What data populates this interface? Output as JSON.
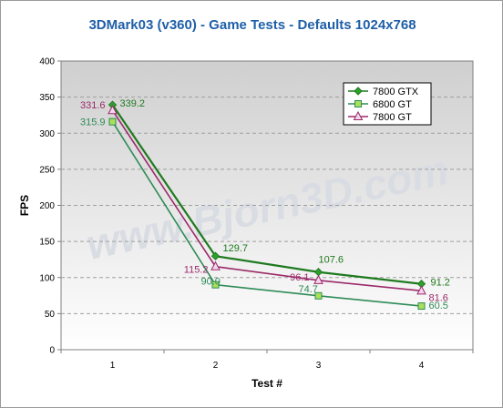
{
  "chart_data": {
    "type": "line",
    "title": "3DMark03 (v360) - Game Tests - Defaults 1024x768",
    "xlabel": "Test #",
    "ylabel": "FPS",
    "categories": [
      "1",
      "2",
      "3",
      "4"
    ],
    "ylim": [
      0,
      400
    ],
    "yticks": [
      0,
      50,
      100,
      150,
      200,
      250,
      300,
      350,
      400
    ],
    "grid": true,
    "legend_position": "top-right",
    "watermark": "www.Bjorn3D.com",
    "series": [
      {
        "name": "7800 GTX",
        "values": [
          339.2,
          129.7,
          107.6,
          91.2
        ],
        "labels": [
          "339.2",
          "129.7",
          "107.6",
          "91.2"
        ],
        "color": "#1f7a1f",
        "marker": "diamond"
      },
      {
        "name": "6800 GT",
        "values": [
          315.9,
          90.0,
          74.7,
          60.5
        ],
        "labels": [
          "315.9",
          "90.0",
          "74.7",
          "60.5"
        ],
        "color": "#2e8b57",
        "marker": "square"
      },
      {
        "name": "7800 GT",
        "values": [
          331.6,
          115.2,
          96.1,
          81.6
        ],
        "labels": [
          "331.6",
          "115.2",
          "96.1",
          "81.6"
        ],
        "color": "#9b2a6a",
        "marker": "triangle"
      }
    ]
  }
}
